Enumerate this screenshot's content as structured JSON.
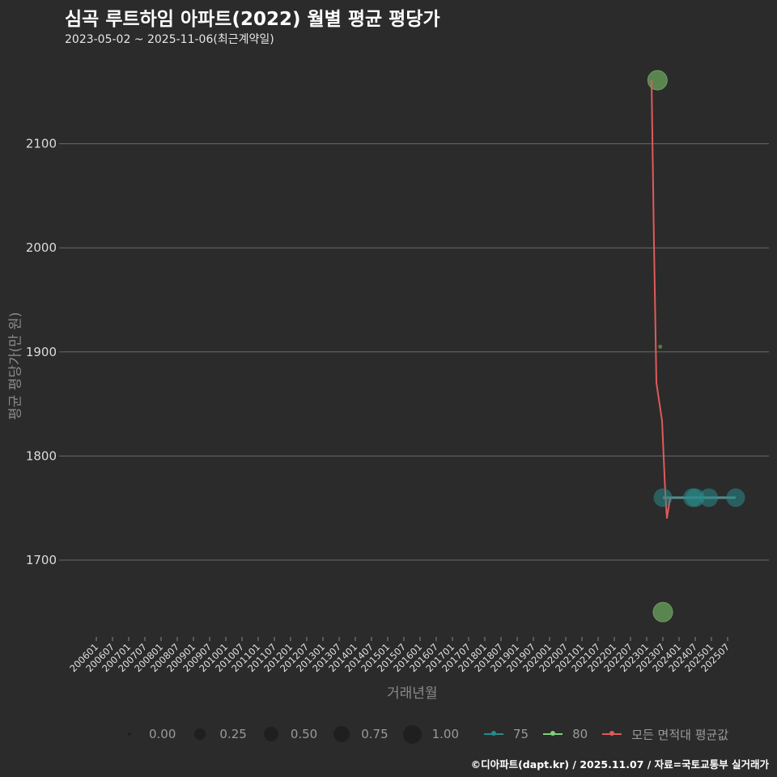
{
  "header": {
    "title": "심곡 루트하임 아파트(2022) 월별 평균 평당가",
    "subtitle": "2023-05-02 ~ 2025-11-06(최근계약일)"
  },
  "axes": {
    "ylabel": "평균 평당가(만 원)",
    "xlabel": "거래년월"
  },
  "legend": {
    "size_items": [
      {
        "label": "0.00",
        "size": 4
      },
      {
        "label": "0.25",
        "size": 14
      },
      {
        "label": "0.50",
        "size": 18
      },
      {
        "label": "0.75",
        "size": 20
      },
      {
        "label": "1.00",
        "size": 23
      }
    ],
    "series_items": [
      {
        "label": "75",
        "color": "#2a8a8a"
      },
      {
        "label": "80",
        "color": "#7ed07a"
      },
      {
        "label": "모든 면적대 평균값",
        "color": "#e05a5a"
      }
    ]
  },
  "caption": "©디아파트(dapt.kr) / 2025.11.07 / 자료=국토교통부 실거래가",
  "colors": {
    "background": "#2b2b2b",
    "grid": "#6a6a6a",
    "teal": "#2a8a8a",
    "green": "#6a9a5a",
    "red": "#e05a5a"
  },
  "chart_data": {
    "type": "scatter",
    "title": "심곡 루트하임 아파트(2022) 월별 평균 평당가",
    "subtitle": "2023-05-02 ~ 2025-11-06(최근계약일)",
    "xlabel": "거래년월",
    "ylabel": "평균 평당가(만 원)",
    "ylim": [
      1620,
      2180
    ],
    "yticks": [
      1700,
      1800,
      1900,
      2000,
      2100
    ],
    "xticks": [
      "200601",
      "200607",
      "200701",
      "200707",
      "200801",
      "200807",
      "200901",
      "200907",
      "201001",
      "201007",
      "201101",
      "201107",
      "201201",
      "201207",
      "201301",
      "201307",
      "201401",
      "201407",
      "201501",
      "201507",
      "201601",
      "201607",
      "201701",
      "201707",
      "201801",
      "201807",
      "201901",
      "201907",
      "202001",
      "202007",
      "202101",
      "202107",
      "202201",
      "202207",
      "202301",
      "202307",
      "202401",
      "202407",
      "202501",
      "202507"
    ],
    "grid": true,
    "legend_position": "bottom",
    "series": [
      {
        "name": "75",
        "type": "line+bubble",
        "color": "#2a8a8a",
        "points": [
          {
            "x": "202307",
            "y": 1760,
            "size": 1.0
          },
          {
            "x": "202406",
            "y": 1760,
            "size": 1.0
          },
          {
            "x": "202407",
            "y": 1760,
            "size": 1.0
          },
          {
            "x": "202412",
            "y": 1760,
            "size": 1.0
          },
          {
            "x": "202510",
            "y": 1760,
            "size": 1.0
          }
        ]
      },
      {
        "name": "80",
        "type": "bubble",
        "color": "#7ed07a",
        "points": [
          {
            "x": "202305",
            "y": 2161,
            "size": 1.0
          },
          {
            "x": "202306",
            "y": 1905,
            "size": 0.0
          },
          {
            "x": "202307",
            "y": 1650,
            "size": 1.0
          }
        ]
      },
      {
        "name": "모든 면적대 평균값",
        "type": "line",
        "color": "#e05a5a",
        "points": [
          {
            "x": "202303",
            "y": 2160
          },
          {
            "x": "202305",
            "y": 1870
          },
          {
            "x": "202307",
            "y": 1835
          },
          {
            "x": "202308",
            "y": 1760
          },
          {
            "x": "202309",
            "y": 1740
          },
          {
            "x": "202310",
            "y": 1760
          }
        ]
      }
    ]
  }
}
